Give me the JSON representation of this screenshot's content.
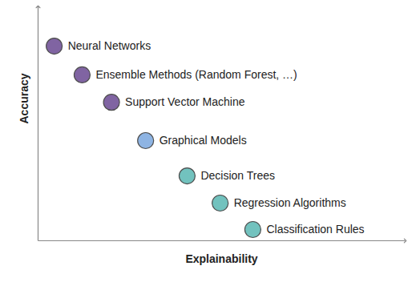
{
  "chart_data": {
    "type": "scatter",
    "x_label": "Explainability",
    "y_label": "Accuracy",
    "labels": [
      "Neural Networks",
      "Ensemble Methods (Random Forest, …)",
      "Support Vector Machine",
      "Graphical Models",
      "Decision Trees",
      "Regression Algorithms",
      "Classification Rules"
    ],
    "x": [
      0.44,
      1.2,
      2.0,
      2.93,
      4.06,
      4.96,
      5.85
    ],
    "values": [
      8.32,
      7.09,
      5.92,
      4.28,
      2.77,
      1.61,
      0.48
    ],
    "colors": [
      "#8064a2",
      "#8064a2",
      "#8064a2",
      "#8eb4e3",
      "#72c2be",
      "#72c2be",
      "#72c2be"
    ],
    "marker": "circle",
    "xlim": [
      0,
      10
    ],
    "ylim": [
      0,
      10
    ],
    "xticks": [],
    "yticks": [],
    "tick_labels": false,
    "grid": false
  }
}
